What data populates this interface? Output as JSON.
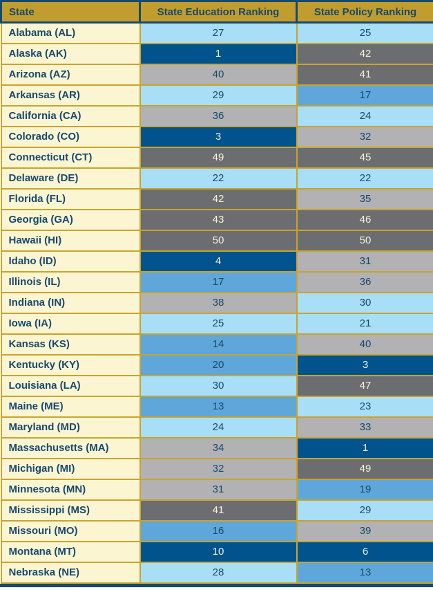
{
  "chart_data": {
    "type": "table",
    "columns": [
      "State",
      "State Education Ranking",
      "State Policy Ranking"
    ],
    "rows": [
      {
        "state": "Alabama (AL)",
        "education": 27,
        "policy": 25
      },
      {
        "state": "Alaska (AK)",
        "education": 1,
        "policy": 42
      },
      {
        "state": "Arizona (AZ)",
        "education": 40,
        "policy": 41
      },
      {
        "state": "Arkansas (AR)",
        "education": 29,
        "policy": 17
      },
      {
        "state": "California (CA)",
        "education": 36,
        "policy": 24
      },
      {
        "state": "Colorado (CO)",
        "education": 3,
        "policy": 32
      },
      {
        "state": "Connecticut (CT)",
        "education": 49,
        "policy": 45
      },
      {
        "state": "Delaware (DE)",
        "education": 22,
        "policy": 22
      },
      {
        "state": "Florida (FL)",
        "education": 42,
        "policy": 35
      },
      {
        "state": "Georgia (GA)",
        "education": 43,
        "policy": 46
      },
      {
        "state": "Hawaii (HI)",
        "education": 50,
        "policy": 50
      },
      {
        "state": "Idaho (ID)",
        "education": 4,
        "policy": 31
      },
      {
        "state": "Illinois (IL)",
        "education": 17,
        "policy": 36
      },
      {
        "state": "Indiana (IN)",
        "education": 38,
        "policy": 30
      },
      {
        "state": "Iowa (IA)",
        "education": 25,
        "policy": 21
      },
      {
        "state": "Kansas (KS)",
        "education": 14,
        "policy": 40
      },
      {
        "state": "Kentucky (KY)",
        "education": 20,
        "policy": 3
      },
      {
        "state": "Louisiana (LA)",
        "education": 30,
        "policy": 47
      },
      {
        "state": "Maine (ME)",
        "education": 13,
        "policy": 23
      },
      {
        "state": "Maryland (MD)",
        "education": 24,
        "policy": 33
      },
      {
        "state": "Massachusetts (MA)",
        "education": 34,
        "policy": 1
      },
      {
        "state": "Michigan (MI)",
        "education": 32,
        "policy": 49
      },
      {
        "state": "Minnesota (MN)",
        "education": 31,
        "policy": 19
      },
      {
        "state": "Mississippi (MS)",
        "education": 41,
        "policy": 29
      },
      {
        "state": "Missouri (MO)",
        "education": 16,
        "policy": 39
      },
      {
        "state": "Montana (MT)",
        "education": 10,
        "policy": 6
      },
      {
        "state": "Nebraska (NE)",
        "education": 28,
        "policy": 13
      }
    ],
    "value_color_tiers": [
      {
        "min": 1,
        "max": 10,
        "bg": "#00538C",
        "text": "#F7F1D6",
        "label": "ranks 1-10 dark blue"
      },
      {
        "min": 11,
        "max": 20,
        "bg": "#5FA7DA",
        "text": "#17496D",
        "label": "ranks 11-20 medium blue"
      },
      {
        "min": 21,
        "max": 30,
        "bg": "#A8DEF6",
        "text": "#17496D",
        "label": "ranks 21-30 light blue"
      },
      {
        "min": 31,
        "max": 40,
        "bg": "#B2B1B4",
        "text": "#17496D",
        "label": "ranks 31-40 light gray"
      },
      {
        "min": 41,
        "max": 50,
        "bg": "#6C6D70",
        "text": "#F7F1D6",
        "label": "ranks 41-50 dark gray"
      }
    ],
    "layout_colors": {
      "header_bg": "#C09D2E",
      "header_text": "#17496D",
      "header_border": "#17496D",
      "body_border_gold": "#C8A42D",
      "state_cell_bg": "#FCF5D2",
      "state_cell_text": "#17496D",
      "bottom_edge": "#17496D"
    }
  }
}
